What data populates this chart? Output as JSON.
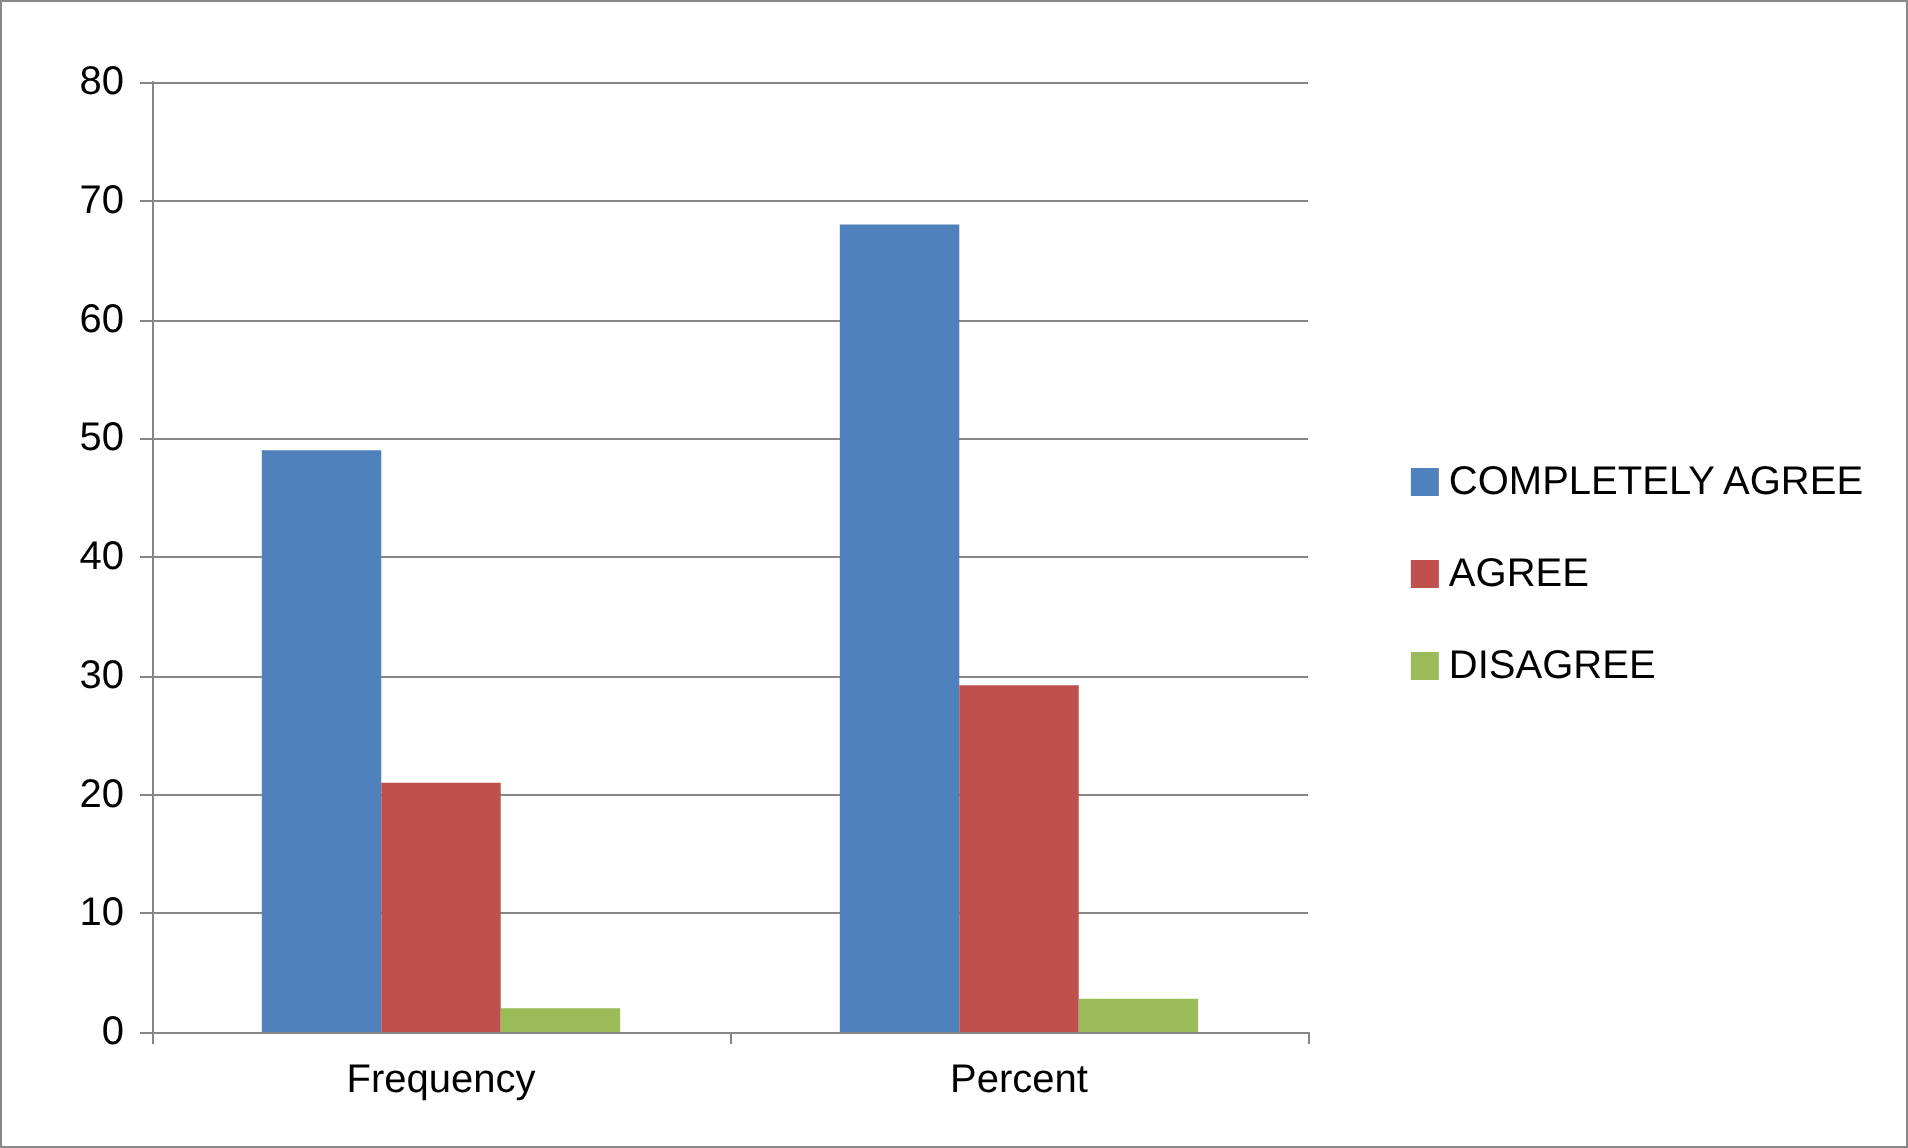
{
  "chart_data": {
    "type": "bar",
    "categories": [
      "Frequency",
      "Percent"
    ],
    "series": [
      {
        "name": "COMPLETELY AGREE",
        "color": "#4f81bd",
        "values": [
          49,
          68
        ]
      },
      {
        "name": "AGREE",
        "color": "#c0504d",
        "values": [
          21,
          29.2
        ]
      },
      {
        "name": "DISAGREE",
        "color": "#9bbb59",
        "values": [
          2,
          2.8
        ]
      }
    ],
    "ylim": [
      0,
      80
    ],
    "yticks": [
      0,
      10,
      20,
      30,
      40,
      50,
      60,
      70,
      80
    ],
    "grid": "y",
    "legend": "right"
  }
}
